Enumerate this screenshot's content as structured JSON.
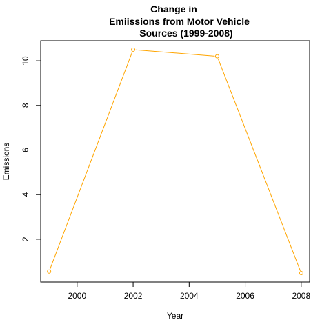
{
  "chart_data": {
    "type": "line",
    "title_lines": [
      "Change in",
      "Emiissions from Motor Vehicle",
      "Sources (1999-2008)"
    ],
    "xlabel": "Year",
    "ylabel": "Emissions",
    "x": [
      1999,
      2002,
      2005,
      2008
    ],
    "y": [
      0.55,
      10.5,
      10.2,
      0.48
    ],
    "xlim": [
      1998.7,
      2008.3
    ],
    "ylim": [
      0.08,
      10.9
    ],
    "x_ticks": [
      2000,
      2002,
      2004,
      2006,
      2008
    ],
    "x_tick_labels": [
      "2000",
      "2002",
      "2004",
      "2006",
      "2008"
    ],
    "y_ticks": [
      2,
      4,
      6,
      8,
      10
    ],
    "y_tick_labels": [
      "2",
      "4",
      "6",
      "8",
      "10"
    ],
    "grid": false,
    "series_color": "#FFA500",
    "marker": "open-circle"
  }
}
